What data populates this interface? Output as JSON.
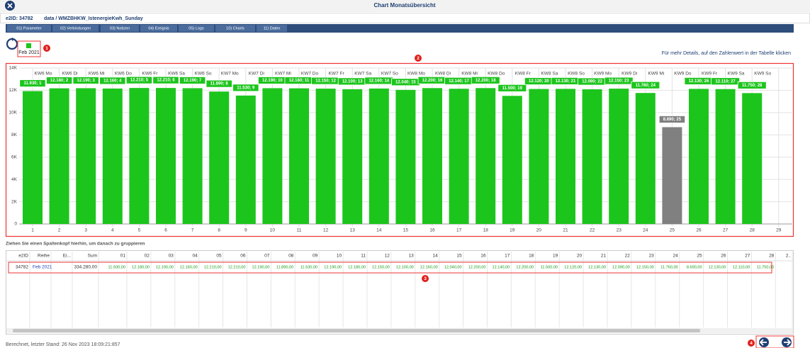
{
  "header": {
    "title": "Chart Monatsübersicht",
    "e2id": "e2ID: 34782",
    "path": "data / WMZBHKW_IstenergieKwh_Sunday"
  },
  "tabs": [
    "01) Parameter",
    "02) Verbindungen",
    "03) Notizen",
    "04) Ereignis",
    "05) Logs",
    "10) Charts",
    "11) Daten"
  ],
  "hint": "Für mehr Details, auf den Zahlenwert in der Tabelle  klicken",
  "markers": [
    "1",
    "2",
    "3",
    "4"
  ],
  "chart_data": {
    "type": "bar",
    "series_name": "Feb 2021",
    "categories": [
      "1",
      "2",
      "3",
      "4",
      "5",
      "6",
      "7",
      "8",
      "9",
      "10",
      "11",
      "12",
      "13",
      "14",
      "15",
      "16",
      "17",
      "18",
      "19",
      "20",
      "21",
      "22",
      "23",
      "24",
      "25",
      "26",
      "27",
      "28",
      "29"
    ],
    "week_labels": [
      "KW6 Mo",
      "KW6 Di",
      "KW6 Mi",
      "KW6 Do",
      "KW6 Fr",
      "KW6 Sa",
      "KW6 So",
      "KW7 Mo",
      "KW7 Di",
      "KW7 Mi",
      "KW7 Do",
      "KW7 Fr",
      "KW7 Sa",
      "KW7 So",
      "KW8 Mo",
      "KW8 Di",
      "KW8 Mi",
      "KW8 Do",
      "KW8 Fr",
      "KW8 Sa",
      "KW8 So",
      "KW9 Mo",
      "KW9 Di",
      "KW9 Mi",
      "KW9 Do",
      "KW9 Fr",
      "KW9 Sa",
      "KW9 So",
      null
    ],
    "values": [
      11930,
      12180,
      12190,
      12160,
      12210,
      12210,
      12190,
      11890,
      11530,
      12190,
      12180,
      12150,
      12100,
      12160,
      12040,
      12200,
      12140,
      12200,
      11500,
      12120,
      12130,
      12090,
      12150,
      11760,
      8690,
      12130,
      12110,
      11750,
      null
    ],
    "value_labels": [
      "11.930; 1",
      "12.180; 2",
      "12.190; 3",
      "12.160; 4",
      "12.210; 5",
      "12.210; 6",
      "12.190; 7",
      "11.890; 8",
      "11.530; 9",
      "12.190; 10",
      "12.180; 11",
      "12.150; 12",
      "12.100; 13",
      "12.160; 14",
      "12.040; 15",
      "12.200; 16",
      "12.140; 17",
      "12.200; 18",
      "11.500; 19",
      "12.120; 20",
      "12.130; 21",
      "12.090; 22",
      "12.150; 23",
      "11.760; 24",
      "8.690; 25",
      "12.130; 26",
      "12.110; 27",
      "11.750; 28",
      null
    ],
    "colors": [
      "#1cc51c",
      "#1cc51c",
      "#1cc51c",
      "#1cc51c",
      "#1cc51c",
      "#1cc51c",
      "#1cc51c",
      "#1cc51c",
      "#1cc51c",
      "#1cc51c",
      "#1cc51c",
      "#1cc51c",
      "#1cc51c",
      "#1cc51c",
      "#1cc51c",
      "#1cc51c",
      "#1cc51c",
      "#1cc51c",
      "#1cc51c",
      "#1cc51c",
      "#1cc51c",
      "#1cc51c",
      "#1cc51c",
      "#1cc51c",
      "#808080",
      "#1cc51c",
      "#1cc51c",
      "#1cc51c",
      null
    ],
    "ylim": [
      0,
      14000
    ],
    "yticks": [
      0,
      {
        "value": 2000,
        "label": "2K"
      },
      {
        "value": 4000,
        "label": "4K"
      },
      {
        "value": 6000,
        "label": "6K"
      },
      {
        "value": 8000,
        "label": "8K"
      },
      {
        "value": 10000,
        "label": "10K"
      },
      {
        "value": 12000,
        "label": "12K"
      },
      {
        "value": 14000,
        "label": "14K"
      }
    ],
    "grid": true
  },
  "table": {
    "group_hint": "Ziehen Sie einen Spaltenkopf hierhin, um danach zu gruppieren",
    "columns": [
      "e2ID",
      "Reihe",
      "Ei...",
      "Sum",
      "01",
      "02",
      "03",
      "04",
      "05",
      "06",
      "07",
      "08",
      "09",
      "10",
      "11",
      "12",
      "13",
      "14",
      "15",
      "16",
      "17",
      "18",
      "19",
      "20",
      "21",
      "22",
      "23",
      "24",
      "25",
      "26",
      "27",
      "28",
      "2.."
    ],
    "row": {
      "e2id": "34782",
      "reihe": "Feb 2021",
      "sum": "334.280,00",
      "days": [
        "11.930,00",
        "12.180,00",
        "12.190,00",
        "12.160,00",
        "12.210,00",
        "12.210,00",
        "12.190,00",
        "11.890,00",
        "11.530,00",
        "12.190,00",
        "12.180,00",
        "12.150,00",
        "12.100,00",
        "12.160,00",
        "12.040,00",
        "12.200,00",
        "12.140,00",
        "12.200,00",
        "11.500,00",
        "12.120,00",
        "12.130,00",
        "12.090,00",
        "12.150,00",
        "11.760,00",
        "8.690,00",
        "12.130,00",
        "12.110,00",
        "11.750,00"
      ]
    }
  },
  "footer": "Berechnet, letzter Stand: 26 Nov 2023 18:09:21:857"
}
